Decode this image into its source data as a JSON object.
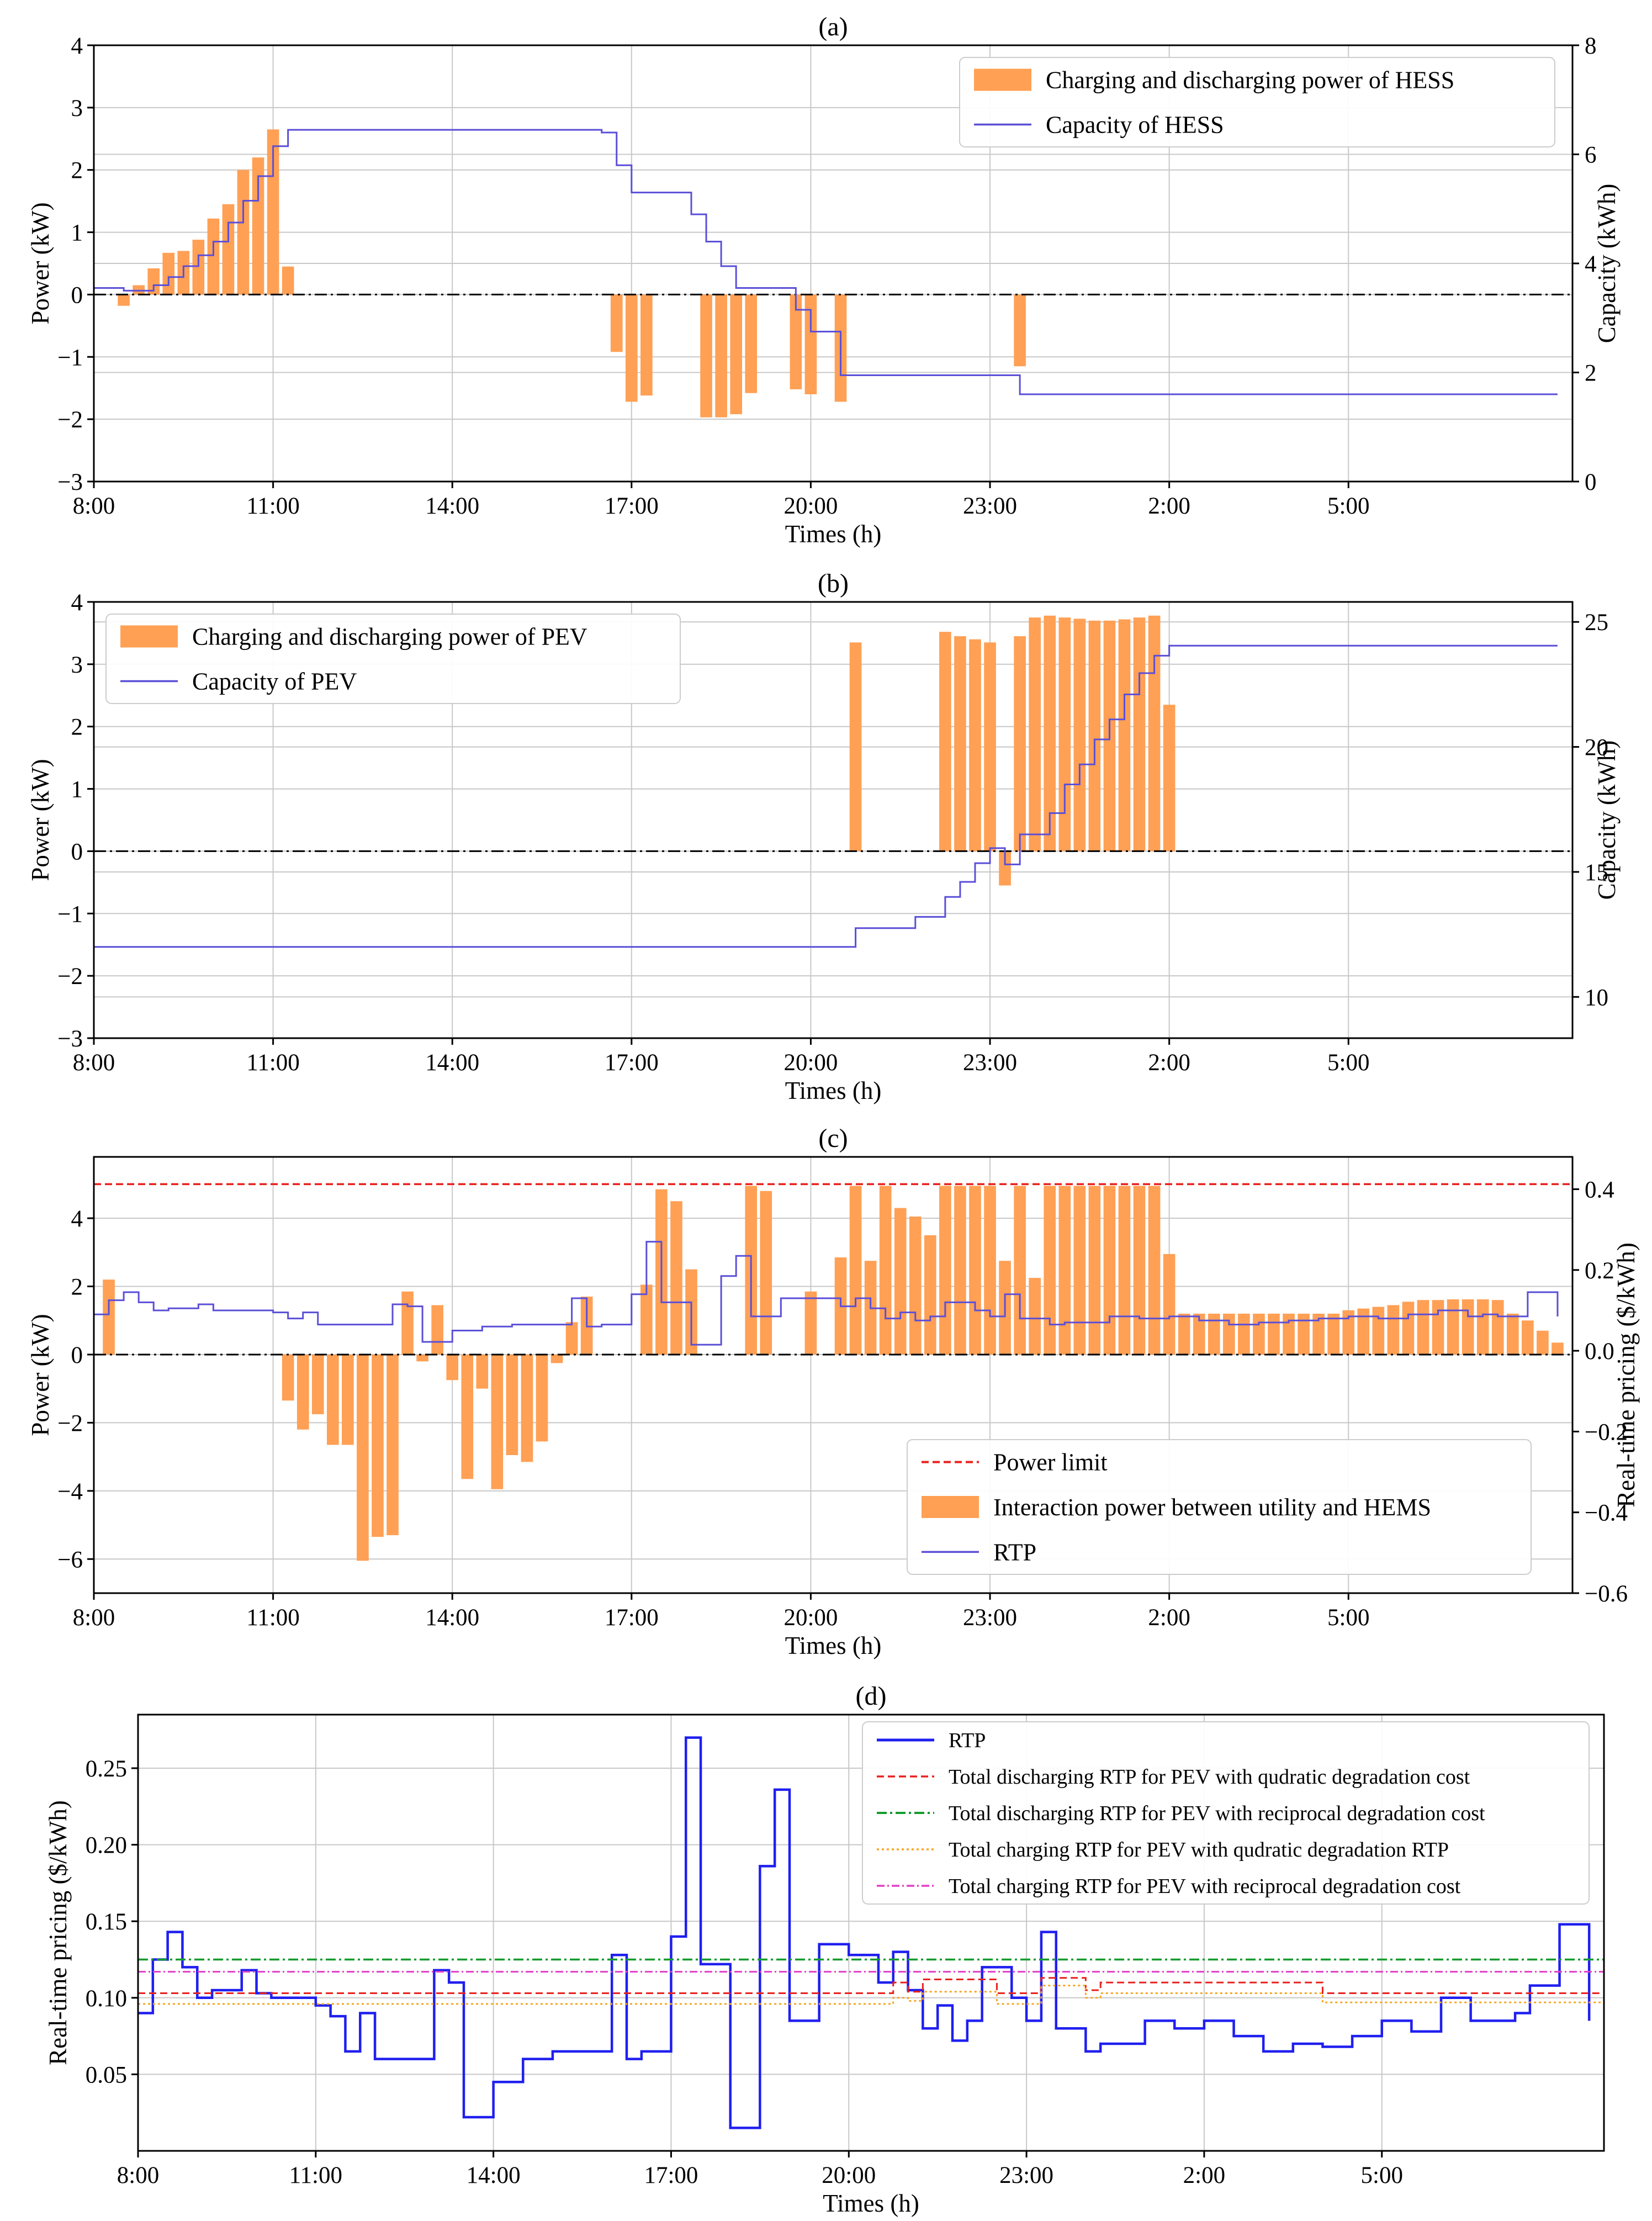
{
  "colors": {
    "orange": "#ffa055",
    "blue_purple": "#5b4fd8",
    "blue": "#1f1ff0",
    "red": "#e8211d",
    "green": "#159c2f",
    "gold": "#f5a623",
    "pink": "#e040c8",
    "grid": "#c8c8c8",
    "baseline": "#000000"
  },
  "chart_data": [
    {
      "id": "a",
      "type": "bar+step",
      "title": "(a)",
      "xlabel": "Times (h)",
      "ylabel": "Power (kW)",
      "y2label": "Capacity (kWh)",
      "xlim": [
        8,
        32.75
      ],
      "xticks": [
        8,
        11,
        14,
        17,
        20,
        23,
        26,
        29
      ],
      "xticklabels": [
        "8:00",
        "11:00",
        "14:00",
        "17:00",
        "20:00",
        "23:00",
        "2:00",
        "5:00"
      ],
      "ylim": [
        -3,
        4
      ],
      "yticks": [
        -3,
        -2,
        -1,
        0,
        1,
        2,
        3,
        4
      ],
      "y2lim": [
        0,
        8
      ],
      "y2ticks": [
        0,
        2,
        4,
        6,
        8
      ],
      "legend": [
        "Charging and discharging power of HESS",
        "Capacity of HESS"
      ],
      "bars": {
        "name": "Charging and discharging power of HESS",
        "width": 0.2,
        "x": [
          8.5,
          8.75,
          9.0,
          9.25,
          9.5,
          9.75,
          10.0,
          10.25,
          10.5,
          10.75,
          11.0,
          11.25,
          16.75,
          17.0,
          17.25,
          18.25,
          18.5,
          18.75,
          19.0,
          19.75,
          20.0,
          20.5,
          23.5
        ],
        "values": [
          -0.18,
          0.15,
          0.42,
          0.67,
          0.7,
          0.88,
          1.22,
          1.45,
          2.0,
          2.2,
          2.65,
          0.45,
          -0.92,
          -1.72,
          -1.62,
          -1.97,
          -1.97,
          -1.92,
          -1.58,
          -1.52,
          -1.6,
          -1.72,
          -1.15
        ]
      },
      "series": [
        {
          "name": "Capacity of HESS",
          "axis": "right",
          "step_x": [
            8.0,
            8.5,
            9.0,
            9.25,
            9.5,
            9.75,
            10.0,
            10.25,
            10.5,
            10.75,
            11.0,
            11.25,
            16.5,
            16.75,
            17.0,
            17.5,
            18.0,
            18.25,
            18.5,
            18.75,
            19.5,
            19.75,
            20.0,
            20.5,
            23.5,
            32.5
          ],
          "step_y": [
            3.55,
            3.5,
            3.6,
            3.75,
            3.95,
            4.15,
            4.4,
            4.75,
            5.15,
            5.6,
            6.15,
            6.45,
            6.4,
            5.8,
            5.3,
            5.3,
            4.9,
            4.4,
            3.95,
            3.55,
            3.55,
            3.15,
            2.75,
            1.95,
            1.6,
            1.6
          ]
        }
      ]
    },
    {
      "id": "b",
      "type": "bar+step",
      "title": "(b)",
      "xlabel": "Times (h)",
      "ylabel": "Power (kW)",
      "y2label": "Capacity (kWh)",
      "xlim": [
        8,
        32.75
      ],
      "xticks": [
        8,
        11,
        14,
        17,
        20,
        23,
        26,
        29
      ],
      "xticklabels": [
        "8:00",
        "11:00",
        "14:00",
        "17:00",
        "20:00",
        "23:00",
        "2:00",
        "5:00"
      ],
      "ylim": [
        -3,
        4
      ],
      "yticks": [
        -3,
        -2,
        -1,
        0,
        1,
        2,
        3,
        4
      ],
      "y2lim": [
        8.35,
        25.8
      ],
      "y2ticks": [
        10,
        15,
        20,
        25
      ],
      "legend": [
        "Charging and discharging power of PEV",
        "Capacity of PEV"
      ],
      "bars": {
        "name": "Charging and discharging power of PEV",
        "width": 0.2,
        "x": [
          20.75,
          22.25,
          22.5,
          22.75,
          23.0,
          23.25,
          23.5,
          23.75,
          24.0,
          24.25,
          24.5,
          24.75,
          25.0,
          25.25,
          25.5,
          25.75,
          26.0
        ],
        "values": [
          3.35,
          3.52,
          3.45,
          3.4,
          3.35,
          -0.55,
          3.45,
          3.75,
          3.78,
          3.75,
          3.73,
          3.7,
          3.7,
          3.72,
          3.75,
          3.78,
          2.35
        ],
        "extra_x": [
          23.25
        ],
        "extra_values": [
          -0.55
        ]
      },
      "series": [
        {
          "name": "Capacity of PEV",
          "axis": "right",
          "step_x": [
            8.0,
            20.75,
            21.75,
            22.25,
            22.5,
            22.75,
            23.0,
            23.25,
            23.5,
            24.0,
            24.25,
            24.5,
            24.75,
            25.0,
            25.25,
            25.5,
            25.75,
            26.0,
            32.5
          ],
          "step_y": [
            12.0,
            12.75,
            13.2,
            14.0,
            14.6,
            15.35,
            15.95,
            15.3,
            16.5,
            17.35,
            18.5,
            19.3,
            20.3,
            21.1,
            22.1,
            22.95,
            23.65,
            24.05,
            24.05
          ]
        }
      ]
    },
    {
      "id": "c",
      "type": "bar+step",
      "title": "(c)",
      "xlabel": "Times (h)",
      "ylabel": "Power (kW)",
      "y2label": "Real-time pricing ($/kWh)",
      "xlim": [
        8,
        32.75
      ],
      "xticks": [
        8,
        11,
        14,
        17,
        20,
        23,
        26,
        29
      ],
      "xticklabels": [
        "8:00",
        "11:00",
        "14:00",
        "17:00",
        "20:00",
        "23:00",
        "2:00",
        "5:00"
      ],
      "ylim": [
        -7.0,
        5.8
      ],
      "yticks": [
        -6,
        -4,
        -2,
        0,
        2,
        4
      ],
      "y2lim": [
        -0.6,
        0.48
      ],
      "y2ticks": [
        -0.6,
        -0.4,
        -0.2,
        0.0,
        0.2,
        0.4
      ],
      "legend": [
        "Power limit",
        "Interaction power between utility and HEMS",
        "RTP"
      ],
      "power_limit": 5.0,
      "bars": {
        "name": "Interaction power between utility and HEMS",
        "width": 0.2,
        "x": [
          8.25,
          11.25,
          11.5,
          11.75,
          12.0,
          12.25,
          12.5,
          12.75,
          13.0,
          13.25,
          13.5,
          13.75,
          14.0,
          14.25,
          14.5,
          14.75,
          15.0,
          15.25,
          15.5,
          15.75,
          16.0,
          16.25,
          17.25,
          17.5,
          17.75,
          18.0,
          19.0,
          19.25,
          20.0,
          20.5,
          20.75,
          21.0,
          21.25,
          21.5,
          21.75,
          22.0,
          22.25,
          22.5,
          22.75,
          23.0,
          23.25,
          23.5,
          23.75,
          24.0,
          24.25,
          24.5,
          24.75,
          25.0,
          25.25,
          25.5,
          25.75,
          26.0,
          26.25,
          26.5,
          26.75,
          27.0,
          27.25,
          27.5,
          27.75,
          28.0,
          28.25,
          28.5,
          28.75,
          29.0,
          29.25,
          29.5,
          29.75,
          30.0,
          30.25,
          30.5,
          30.75,
          31.0,
          31.25,
          31.5,
          31.75,
          32.0,
          32.25,
          32.5
        ],
        "values": [
          2.2,
          -1.35,
          -2.2,
          -1.75,
          -2.65,
          -2.65,
          -6.05,
          -5.35,
          -5.3,
          1.85,
          -0.2,
          1.45,
          -0.75,
          -3.65,
          -1.0,
          -3.95,
          -2.95,
          -3.15,
          -2.55,
          -0.25,
          0.95,
          1.7,
          2.05,
          4.85,
          4.5,
          2.5,
          4.95,
          4.8,
          1.85,
          2.85,
          4.95,
          2.75,
          4.95,
          4.3,
          4.05,
          3.5,
          4.95,
          4.95,
          4.95,
          4.95,
          2.75,
          4.95,
          2.25,
          4.95,
          4.95,
          4.95,
          4.95,
          4.95,
          4.95,
          4.95,
          4.95,
          2.95,
          1.2,
          1.2,
          1.2,
          1.2,
          1.2,
          1.2,
          1.2,
          1.2,
          1.2,
          1.2,
          1.2,
          1.3,
          1.35,
          1.4,
          1.45,
          1.55,
          1.6,
          1.6,
          1.62,
          1.62,
          1.62,
          1.6,
          1.2,
          1.0,
          0.7,
          0.35
        ]
      },
      "series": [
        {
          "name": "RTP",
          "axis": "right",
          "step_x": [
            8.0,
            8.25,
            8.5,
            8.75,
            9.0,
            9.25,
            9.75,
            10.0,
            10.25,
            11.0,
            11.25,
            11.5,
            11.75,
            12.0,
            13.0,
            13.25,
            13.5,
            14.0,
            14.5,
            15.0,
            15.5,
            16.0,
            16.25,
            16.5,
            17.0,
            17.25,
            17.5,
            18.0,
            18.5,
            18.75,
            19.0,
            19.5,
            20.0,
            20.5,
            20.75,
            21.0,
            21.25,
            21.5,
            21.75,
            22.0,
            22.25,
            22.75,
            23.0,
            23.25,
            23.5,
            24.0,
            24.25,
            25.0,
            25.5,
            26.0,
            26.5,
            27.0,
            27.5,
            28.0,
            28.5,
            29.0,
            29.5,
            30.0,
            30.5,
            31.0,
            31.25,
            31.5,
            31.75,
            32.0,
            32.5
          ],
          "step_y": [
            0.09,
            0.125,
            0.145,
            0.12,
            0.1,
            0.105,
            0.115,
            0.1,
            0.1,
            0.095,
            0.08,
            0.095,
            0.065,
            0.065,
            0.115,
            0.11,
            0.022,
            0.05,
            0.06,
            0.065,
            0.065,
            0.13,
            0.06,
            0.065,
            0.14,
            0.27,
            0.12,
            0.015,
            0.185,
            0.235,
            0.085,
            0.13,
            0.13,
            0.11,
            0.13,
            0.105,
            0.08,
            0.095,
            0.075,
            0.085,
            0.12,
            0.1,
            0.085,
            0.14,
            0.08,
            0.065,
            0.07,
            0.085,
            0.08,
            0.085,
            0.075,
            0.065,
            0.07,
            0.075,
            0.08,
            0.085,
            0.08,
            0.09,
            0.1,
            0.085,
            0.09,
            0.085,
            0.085,
            0.145,
            0.085
          ]
        }
      ]
    },
    {
      "id": "d",
      "type": "line",
      "title": "(d)",
      "xlabel": "Times (h)",
      "ylabel": "Real-time pricing ($/kWh)",
      "xlim": [
        8,
        32.75
      ],
      "xticks": [
        8,
        11,
        14,
        17,
        20,
        23,
        26,
        29
      ],
      "xticklabels": [
        "8:00",
        "11:00",
        "14:00",
        "17:00",
        "20:00",
        "23:00",
        "2:00",
        "5:00"
      ],
      "ylim": [
        0,
        0.285
      ],
      "yticks": [
        0.05,
        0.1,
        0.15,
        0.2,
        0.25
      ],
      "yticklabels": [
        "0.05",
        "0.10",
        "0.15",
        "0.20",
        "0.25"
      ],
      "legend": [
        "RTP",
        "Total discharging RTP for PEV with qudratic degradation cost",
        "Total discharging RTP for PEV with reciprocal degradation cost",
        "Total charging RTP for PEV with qudratic degradation RTP",
        "Total charging RTP for PEV with reciprocal degradation cost"
      ],
      "series": [
        {
          "name": "RTP",
          "step_x": [
            8.0,
            8.25,
            8.5,
            8.75,
            9.0,
            9.25,
            9.75,
            10.0,
            10.25,
            11.0,
            11.25,
            11.5,
            11.75,
            12.0,
            13.0,
            13.25,
            13.5,
            14.0,
            14.5,
            15.0,
            15.5,
            16.0,
            16.25,
            16.5,
            17.0,
            17.25,
            17.5,
            18.0,
            18.5,
            18.75,
            19.0,
            19.5,
            20.0,
            20.5,
            20.75,
            21.0,
            21.25,
            21.5,
            21.75,
            22.0,
            22.25,
            22.75,
            23.0,
            23.25,
            23.5,
            24.0,
            24.25,
            25.0,
            25.5,
            26.0,
            26.5,
            27.0,
            27.5,
            28.0,
            28.5,
            29.0,
            29.5,
            30.0,
            30.5,
            31.0,
            31.25,
            31.5,
            31.75,
            32.0,
            32.5
          ],
          "step_y": [
            0.09,
            0.125,
            0.143,
            0.12,
            0.1,
            0.105,
            0.118,
            0.103,
            0.1,
            0.095,
            0.088,
            0.065,
            0.09,
            0.06,
            0.118,
            0.11,
            0.022,
            0.045,
            0.06,
            0.065,
            0.065,
            0.128,
            0.06,
            0.065,
            0.14,
            0.27,
            0.122,
            0.015,
            0.186,
            0.236,
            0.085,
            0.135,
            0.128,
            0.11,
            0.13,
            0.105,
            0.08,
            0.095,
            0.072,
            0.085,
            0.12,
            0.1,
            0.085,
            0.143,
            0.08,
            0.065,
            0.07,
            0.085,
            0.08,
            0.085,
            0.075,
            0.065,
            0.07,
            0.068,
            0.075,
            0.085,
            0.078,
            0.1,
            0.085,
            0.085,
            0.09,
            0.108,
            0.108,
            0.148,
            0.085
          ]
        },
        {
          "name": "Total discharging RTP for PEV with qudratic degradation cost",
          "step_x": [
            8.0,
            20.5,
            20.75,
            21.0,
            21.25,
            22.5,
            23.25,
            23.5,
            24.0,
            24.25,
            26.5,
            27.5,
            28.0,
            32.75
          ],
          "step_y": [
            0.103,
            0.103,
            0.11,
            0.104,
            0.112,
            0.103,
            0.113,
            0.113,
            0.105,
            0.11,
            0.11,
            0.11,
            0.103,
            0.103
          ]
        },
        {
          "name": "Total discharging RTP for PEV with reciprocal degradation cost",
          "step_x": [
            8.0,
            32.75
          ],
          "step_y": [
            0.125,
            0.125
          ]
        },
        {
          "name": "Total charging RTP for PEV with qudratic degradation RTP",
          "step_x": [
            8.0,
            20.5,
            20.75,
            21.0,
            21.25,
            22.5,
            23.25,
            23.5,
            24.0,
            24.25,
            26.5,
            27.5,
            28.0,
            32.75
          ],
          "step_y": [
            0.096,
            0.096,
            0.1,
            0.098,
            0.104,
            0.096,
            0.108,
            0.108,
            0.1,
            0.103,
            0.103,
            0.103,
            0.097,
            0.096
          ]
        },
        {
          "name": "Total charging RTP for PEV with reciprocal degradation cost",
          "step_x": [
            8.0,
            32.75
          ],
          "step_y": [
            0.117,
            0.117
          ]
        }
      ]
    }
  ]
}
